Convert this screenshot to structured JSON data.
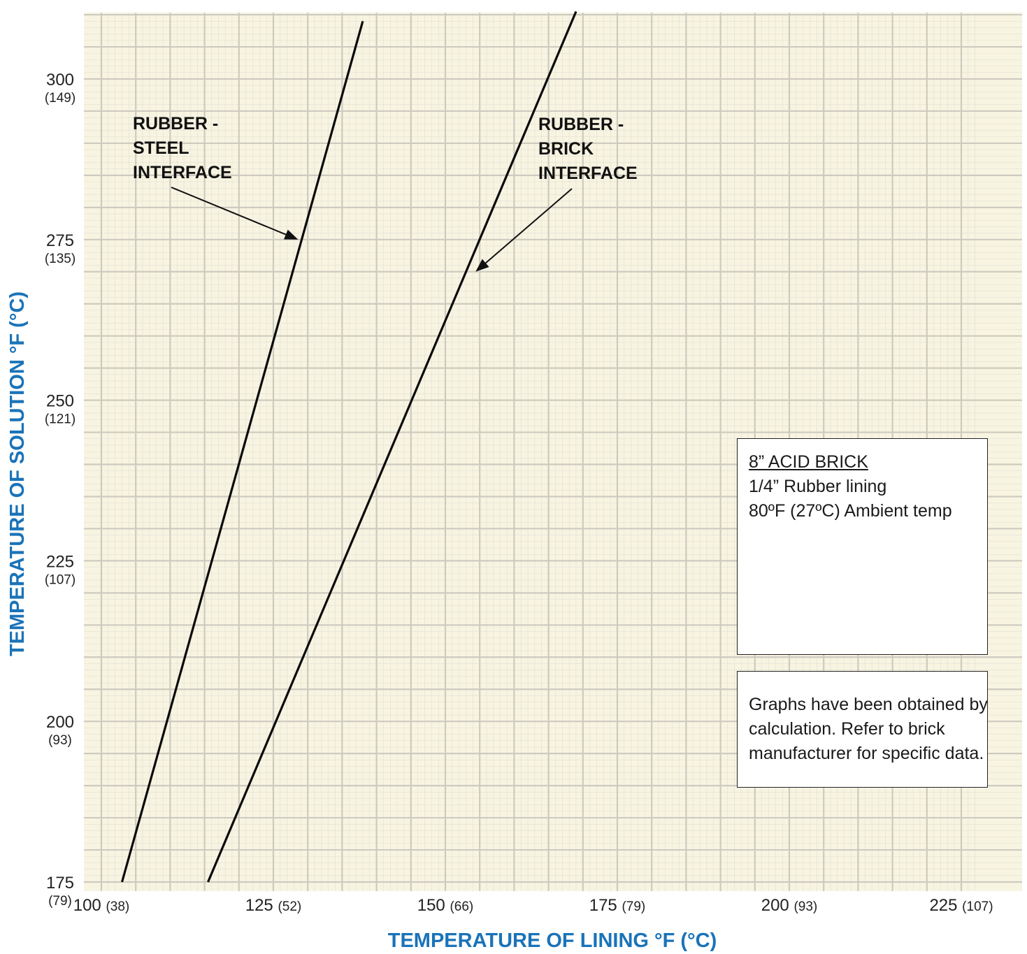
{
  "chart_data": {
    "type": "line",
    "xlabel": "TEMPERATURE OF LINING °F (°C)",
    "ylabel": "TEMPERATURE OF SOLUTION °F (°C)",
    "xlim": [
      100,
      228
    ],
    "ylim": [
      175,
      311
    ],
    "x_ticks": [
      {
        "main": "100",
        "sub": "(38)",
        "value": 100
      },
      {
        "main": "125",
        "sub": "(52)",
        "value": 125
      },
      {
        "main": "150",
        "sub": "(66)",
        "value": 150
      },
      {
        "main": "175",
        "sub": "(79)",
        "value": 175
      },
      {
        "main": "200",
        "sub": "(93)",
        "value": 200
      },
      {
        "main": "225",
        "sub": "(107)",
        "value": 225
      }
    ],
    "y_ticks": [
      {
        "main": "175",
        "sub": "(79)",
        "value": 175
      },
      {
        "main": "200",
        "sub": "(93)",
        "value": 200
      },
      {
        "main": "225",
        "sub": "(107)",
        "value": 225
      },
      {
        "main": "250",
        "sub": "(121)",
        "value": 250
      },
      {
        "main": "275",
        "sub": "(135)",
        "value": 275
      },
      {
        "main": "300",
        "sub": "(149)",
        "value": 300
      }
    ],
    "grid": true,
    "series": [
      {
        "name": "RUBBER - STEEL INTERFACE",
        "x": [
          103,
          138
        ],
        "y": [
          175,
          309
        ]
      },
      {
        "name": "RUBBER - BRICK INTERFACE",
        "x": [
          115.5,
          169
        ],
        "y": [
          175,
          310.5
        ]
      }
    ],
    "annotations": [
      {
        "lines": [
          "RUBBER -",
          "STEEL",
          "INTERFACE"
        ],
        "points_to": {
          "x": 128.6,
          "y": 275
        }
      },
      {
        "lines": [
          "RUBBER -",
          "BRICK",
          "INTERFACE"
        ],
        "points_to": {
          "x": 154.4,
          "y": 270
        }
      }
    ],
    "colors": {
      "background": "#f8f4e2",
      "grid": "#cdcbbf",
      "line": "#0a0a0a",
      "axis_title": "#1a73b8"
    }
  },
  "spec_box": {
    "title": "8” ACID BRICK",
    "line1": "1/4” Rubber lining",
    "line2": "80ºF (27ºC) Ambient temp"
  },
  "note_box": {
    "line1": "Graphs have been obtained by",
    "line2": "calculation. Refer to brick",
    "line3": "manufacturer for specific data."
  }
}
